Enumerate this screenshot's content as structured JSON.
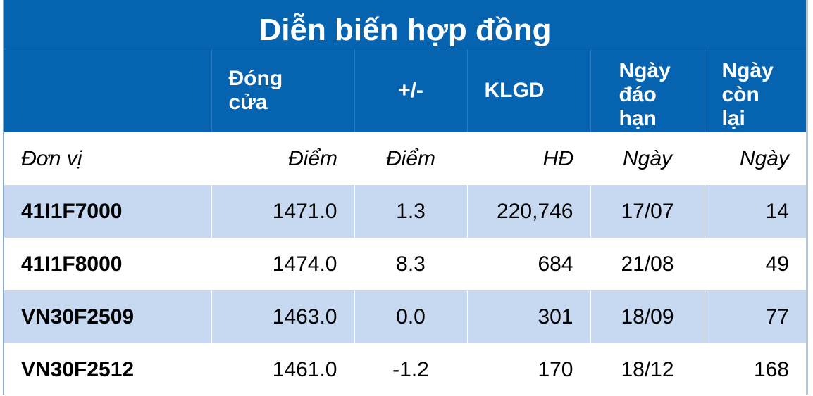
{
  "title": "Diễn biến hợp đồng",
  "columns": [
    "",
    "Đóng cửa",
    "+/-",
    "KLGD",
    "Ngày đáo hạn",
    "Ngày còn lại"
  ],
  "units": [
    "Đơn vị",
    "Điểm",
    "Điểm",
    "HĐ",
    "Ngày",
    "Ngày"
  ],
  "rows": [
    [
      "41I1F7000",
      "1471.0",
      "1.3",
      "220,746",
      "17/07",
      "14"
    ],
    [
      "41I1F8000",
      "1474.0",
      "8.3",
      "684",
      "21/08",
      "49"
    ],
    [
      "VN30F2509",
      "1463.0",
      "0.0",
      "301",
      "18/09",
      "77"
    ],
    [
      "VN30F2512",
      "1461.0",
      "-1.2",
      "170",
      "18/12",
      "168"
    ]
  ],
  "colors": {
    "header_blue": "#0563b0",
    "alt_row": "#c6d9f0"
  }
}
